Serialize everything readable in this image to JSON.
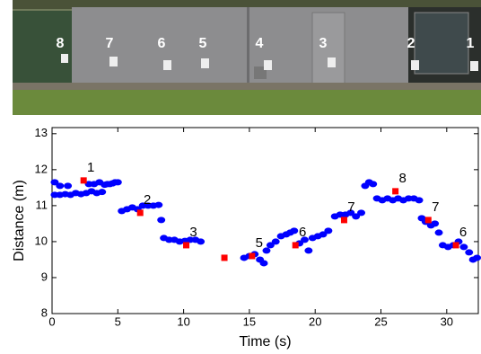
{
  "photo": {
    "labels": [
      "8",
      "7",
      "6",
      "5",
      "4",
      "3",
      "2",
      "1"
    ]
  },
  "chart_data": {
    "type": "scatter",
    "x_label": "Time (s)",
    "y_label": "Distance (m)",
    "xlim": [
      0,
      32.4
    ],
    "ylim": [
      8,
      13.17
    ],
    "xticks": [
      0,
      5,
      10,
      15,
      20,
      25,
      30
    ],
    "yticks": [
      8,
      9,
      10,
      11,
      12,
      13
    ],
    "series": [
      {
        "color": "#0000ff",
        "marker": "circle",
        "x": [
          0.2,
          0.6,
          1.0,
          1.4,
          1.8,
          2.2,
          2.6,
          3.0,
          3.4,
          3.8,
          4.2,
          4.6,
          5.0,
          0.2,
          0.6,
          1.2,
          2.8,
          3.2,
          3.6,
          4.0,
          4.4,
          4.8,
          5.3,
          5.7,
          6.1,
          6.5,
          6.9,
          7.3,
          7.7,
          8.1,
          8.3,
          8.5,
          8.9,
          9.3,
          9.7,
          10.1,
          10.5,
          10.9,
          11.3,
          14.6,
          15.0,
          15.4,
          15.8,
          16.1,
          16.3,
          16.6,
          17.0,
          17.4,
          17.8,
          18.1,
          18.4,
          18.8,
          19.2,
          19.5,
          19.8,
          20.2,
          20.6,
          21.0,
          21.5,
          21.9,
          22.3,
          22.7,
          23.1,
          23.5,
          23.8,
          24.1,
          24.4,
          24.7,
          25.1,
          25.5,
          25.9,
          26.3,
          26.7,
          27.1,
          27.5,
          27.9,
          28.1,
          28.4,
          28.8,
          29.1,
          29.4,
          29.7,
          30.1,
          30.5,
          30.9,
          31.3,
          31.7,
          32.0,
          32.3
        ],
        "y": [
          11.3,
          11.3,
          11.32,
          11.3,
          11.35,
          11.32,
          11.35,
          11.4,
          11.35,
          11.38,
          11.6,
          11.62,
          11.65,
          11.65,
          11.55,
          11.55,
          11.6,
          11.6,
          11.65,
          11.58,
          11.6,
          11.65,
          10.85,
          10.9,
          10.95,
          10.9,
          11.0,
          11.0,
          11.0,
          11.02,
          10.6,
          10.1,
          10.05,
          10.05,
          10.0,
          10.02,
          10.05,
          10.05,
          10.0,
          9.55,
          9.6,
          9.65,
          9.5,
          9.4,
          9.75,
          9.9,
          10.0,
          10.15,
          10.2,
          10.25,
          10.3,
          9.95,
          10.05,
          9.75,
          10.1,
          10.15,
          10.2,
          10.3,
          10.7,
          10.75,
          10.75,
          10.8,
          10.7,
          10.8,
          11.55,
          11.65,
          11.6,
          11.2,
          11.15,
          11.2,
          11.15,
          11.2,
          11.15,
          11.2,
          11.2,
          11.15,
          10.65,
          10.55,
          10.45,
          10.5,
          10.25,
          9.9,
          9.85,
          9.9,
          10.0,
          9.85,
          9.7,
          9.5,
          9.55
        ]
      },
      {
        "color": "#ff0000",
        "marker": "square",
        "x": [
          2.4,
          6.7,
          10.2,
          13.1,
          15.2,
          18.5,
          22.2,
          26.1,
          28.6,
          30.7
        ],
        "y": [
          11.7,
          10.8,
          9.9,
          9.55,
          9.6,
          9.9,
          10.6,
          11.4,
          10.6,
          9.9
        ],
        "labels": [
          "1",
          "2",
          "3",
          null,
          "5",
          "6",
          "7",
          "8",
          "7",
          "6"
        ]
      }
    ]
  }
}
